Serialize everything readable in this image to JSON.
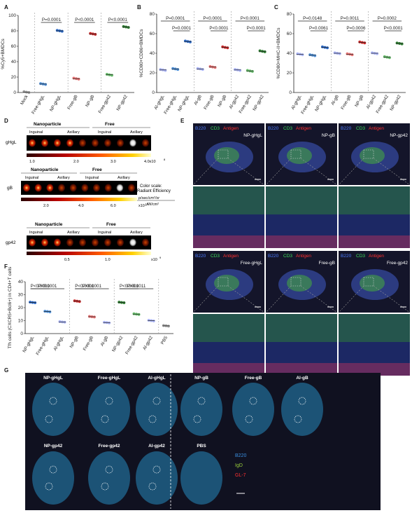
{
  "panel_labels": [
    "A",
    "B",
    "C",
    "D",
    "E",
    "F",
    "G"
  ],
  "colors": {
    "mock": "#9e9e9e",
    "free_ghgl": "#4f8fd6",
    "np_ghgl": "#2d69c4",
    "free_gb": "#e57373",
    "np_gb": "#c62828",
    "free_gp42": "#66bb6a",
    "np_gp42": "#2e7d32",
    "al": "#aab4f5",
    "pbs": "#9e9e9e"
  },
  "chart_data": [
    {
      "type": "scatter",
      "panel": "A",
      "ylabel": "%Cy5+BMDCs",
      "ylim": [
        0,
        100
      ],
      "yticks": [
        "0",
        "20",
        "40",
        "60",
        "80",
        "100"
      ],
      "categories": [
        "Mock",
        "Free-gHgL",
        "NP-gHgL",
        "Free-gB",
        "NP-gB",
        "Free-gp42",
        "NP-gp42"
      ],
      "values": [
        0.5,
        11,
        80,
        18,
        76,
        23,
        85
      ],
      "significance": [
        {
          "label": "P=0.0001",
          "between": [
            "Free-gHgL",
            "NP-gHgL"
          ]
        },
        {
          "label": "P<0.0001",
          "between": [
            "Free-gB",
            "NP-gB"
          ]
        },
        {
          "label": "P<0.0001",
          "between": [
            "Free-gp42",
            "NP-gp42"
          ]
        }
      ]
    },
    {
      "type": "scatter",
      "panel": "B",
      "ylabel": "%CD80+CD86+BMDCs",
      "ylim": [
        0,
        80
      ],
      "yticks": [
        "0",
        "20",
        "40",
        "60",
        "80"
      ],
      "categories": [
        "Al-gHgL",
        "Free-gHgL",
        "NP-gHgL",
        "Al-gB",
        "Free-gB",
        "NP-gB",
        "Al-gp42",
        "Free-gp42",
        "NP-gp42"
      ],
      "values": [
        23,
        24,
        52,
        24,
        26,
        46,
        23,
        22,
        42
      ],
      "significance": [
        {
          "label": "P=0.0001",
          "between": [
            "Al-gHgL",
            "NP-gHgL"
          ]
        },
        {
          "label": "P=0.0001",
          "between": [
            "Free-gHgL",
            "NP-gHgL"
          ]
        },
        {
          "label": "P<0.0001",
          "between": [
            "Al-gB",
            "NP-gB"
          ]
        },
        {
          "label": "P<0.0001",
          "between": [
            "Free-gB",
            "NP-gB"
          ]
        },
        {
          "label": "P<0.0001",
          "between": [
            "Al-gp42",
            "NP-gp42"
          ]
        },
        {
          "label": "P<0.0001",
          "between": [
            "Free-gp42",
            "NP-gp42"
          ]
        }
      ]
    },
    {
      "type": "scatter",
      "panel": "C",
      "ylabel": "%CD80+MHC-II+BMDCs",
      "ylim": [
        0,
        80
      ],
      "yticks": [
        "0",
        "20",
        "40",
        "60",
        "80"
      ],
      "categories": [
        "Al-gHgL",
        "Free-gHgL",
        "NP-gHgL",
        "Al-gB",
        "Free-gB",
        "NP-gB",
        "Al-gp42",
        "Free-gp42",
        "NP-gp42"
      ],
      "values": [
        39,
        38,
        46,
        40,
        39,
        51,
        40,
        36,
        50
      ],
      "significance": [
        {
          "label": "P=0.0148",
          "between": [
            "Al-gHgL",
            "NP-gHgL"
          ]
        },
        {
          "label": "P=0.0061",
          "between": [
            "Free-gHgL",
            "NP-gHgL"
          ]
        },
        {
          "label": "P=0.0011",
          "between": [
            "Al-gB",
            "NP-gB"
          ]
        },
        {
          "label": "P=0.0006",
          "between": [
            "Free-gB",
            "NP-gB"
          ]
        },
        {
          "label": "P=0.0002",
          "between": [
            "Al-gp42",
            "NP-gp42"
          ]
        },
        {
          "label": "P<0.0001",
          "between": [
            "Free-gp42",
            "NP-gp42"
          ]
        }
      ]
    },
    {
      "type": "scatter",
      "panel": "F",
      "ylabel": "Tfh cells (CXCR5+Bcl6+) in CD4+T cells",
      "ylim": [
        0,
        40
      ],
      "yticks": [
        "0",
        "10",
        "20",
        "30",
        "40"
      ],
      "categories": [
        "NP-gHgL",
        "Free-gHgL",
        "Al-gHgL",
        "NP-gB",
        "Free-gB",
        "Al-gB",
        "NP-gp42",
        "Free-gp42",
        "Al-gp42",
        "PBS"
      ],
      "values": [
        24,
        17,
        9,
        25,
        13,
        8.5,
        24,
        15,
        10,
        6
      ],
      "significance": [
        {
          "label": "P<0.0001",
          "between": [
            "NP-gHgL",
            "Al-gHgL"
          ]
        },
        {
          "label": "P<0.0001",
          "between": [
            "NP-gHgL",
            "Free-gHgL"
          ]
        },
        {
          "label": "P<0.0001",
          "between": [
            "NP-gB",
            "Al-gB"
          ]
        },
        {
          "label": "P<0.0001",
          "between": [
            "NP-gB",
            "Free-gB"
          ]
        },
        {
          "label": "P=0.0011",
          "between": [
            "NP-gp42",
            "Al-gp42"
          ]
        },
        {
          "label": "P<0.0001",
          "between": [
            "NP-gp42",
            "Free-gp42"
          ]
        }
      ]
    }
  ],
  "panel_d": {
    "rows": [
      {
        "label": "gHgL",
        "header_left": "Nanoparticle",
        "header_right": "Free",
        "sub": [
          "Inguinal",
          "Axillary",
          "Inguinal",
          "Axillary"
        ],
        "scale_ticks": [
          "1.0",
          "2.0",
          "3.0",
          "4.0x10"
        ],
        "exp": "8"
      },
      {
        "label": "gB",
        "header_left": "Nanoparticle",
        "header_right": "Free",
        "sub": [
          "Inguinal",
          "Axillary",
          "Inguinal",
          "Axillary"
        ],
        "scale_ticks": [
          "2.0",
          "4.0",
          "6.0"
        ],
        "exp": "8",
        "scale_unit": "x10"
      },
      {
        "label": "gp42",
        "header_left": "Nanoparticle",
        "header_right": "Free",
        "sub": [
          "Inguinal",
          "Axillary",
          "Inguinal",
          "Axillary"
        ],
        "scale_ticks": [
          "0.5",
          "1.0"
        ],
        "exp": "9",
        "scale_unit": "x10"
      }
    ],
    "color_scale_title": "Color scale:",
    "color_scale_sub": "Radiant Efficiency",
    "color_scale_unit_num": "p/sec/cm²/sr",
    "color_scale_unit_den": "μW/cm²"
  },
  "panel_e": {
    "channel_labels": [
      "B220",
      "CD3",
      "Antigen"
    ],
    "top_titles": [
      "NP-gHgL",
      "NP-gB",
      "NP-gp42"
    ],
    "bottom_titles": [
      "Free-gHgL",
      "Free-gB",
      "Free-gp42"
    ]
  },
  "panel_g": {
    "top_titles": [
      "NP-gHgL",
      "Free-gHgL",
      "Al-gHgL",
      "NP-gB",
      "Free-gB",
      "Al-gB"
    ],
    "bottom_titles": [
      "NP-gp42",
      "Free-gp42",
      "Al-gp42",
      "PBS"
    ],
    "legend": [
      "B220",
      "IgD",
      "GL-7"
    ]
  }
}
